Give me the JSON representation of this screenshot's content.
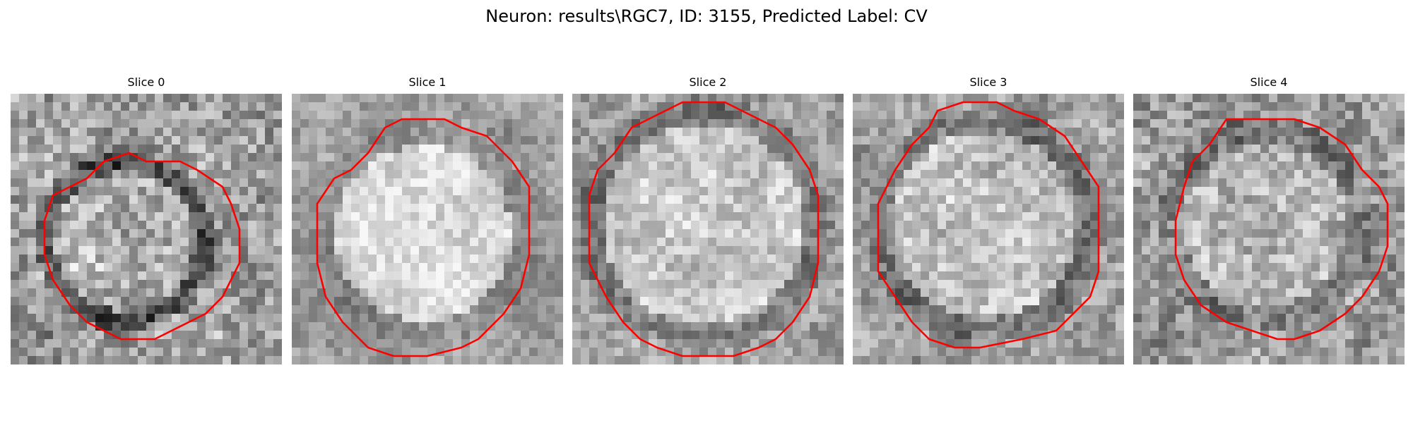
{
  "figure": {
    "title": "Neuron: results\\RGC7, ID: 3155, Predicted Label: CV"
  },
  "slices": [
    {
      "title": "Slice 0"
    },
    {
      "title": "Slice 1"
    },
    {
      "title": "Slice 2"
    },
    {
      "title": "Slice 3"
    },
    {
      "title": "Slice 4"
    }
  ],
  "colors": {
    "background": "#ffffff",
    "contour": "#ff0000",
    "colormap": "gray"
  }
}
